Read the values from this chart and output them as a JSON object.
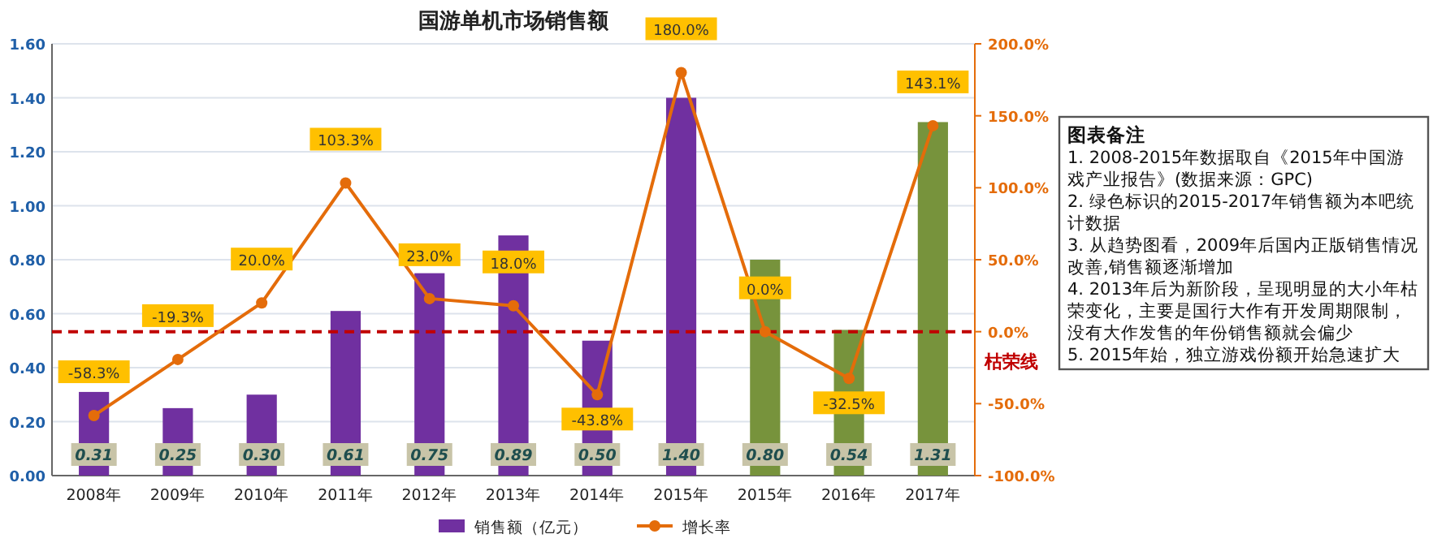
{
  "chart_data": {
    "type": "bar",
    "title": "国游单机市场销售额",
    "categories": [
      "2008年",
      "2009年",
      "2010年",
      "2011年",
      "2012年",
      "2013年",
      "2014年",
      "2015年",
      "2015年",
      "2016年",
      "2017年"
    ],
    "series": [
      {
        "name": "销售额（亿元）",
        "color": "#7030a0",
        "colors": [
          "#7030a0",
          "#7030a0",
          "#7030a0",
          "#7030a0",
          "#7030a0",
          "#7030a0",
          "#7030a0",
          "#7030a0",
          "#77933c",
          "#77933c",
          "#77933c"
        ],
        "values": [
          0.31,
          0.25,
          0.3,
          0.61,
          0.75,
          0.89,
          0.5,
          1.4,
          0.8,
          0.54,
          1.31
        ],
        "value_labels": [
          "0.31",
          "0.25",
          "0.30",
          "0.61",
          "0.75",
          "0.89",
          "0.50",
          "1.40",
          "0.80",
          "0.54",
          "1.31"
        ]
      },
      {
        "name": "增长率",
        "type": "line",
        "axis": "y2",
        "color": "#e46c0a",
        "marker": "circle",
        "values": [
          -58.3,
          -19.3,
          20.0,
          103.3,
          23.0,
          18.0,
          -43.8,
          180.0,
          0.0,
          -32.5,
          143.1
        ],
        "value_labels": [
          "-58.3%",
          "-19.3%",
          "20.0%",
          "103.3%",
          "23.0%",
          "18.0%",
          "-43.8%",
          "180.0%",
          "0.0%",
          "-32.5%",
          "143.1%"
        ]
      }
    ],
    "ylim": [
      0,
      1.6
    ],
    "yticks": [
      {
        "value": 0,
        "label": "0.00"
      },
      {
        "value": 0.2,
        "label": "0.20"
      },
      {
        "value": 0.4,
        "label": "0.40"
      },
      {
        "value": 0.6,
        "label": "0.60"
      },
      {
        "value": 0.8,
        "label": "0.80"
      },
      {
        "value": 1.0,
        "label": "1.00"
      },
      {
        "value": 1.2,
        "label": "1.20"
      },
      {
        "value": 1.4,
        "label": "1.40"
      },
      {
        "value": 1.6,
        "label": "1.60"
      }
    ],
    "y2lim": [
      -100,
      200
    ],
    "y2ticks": [
      {
        "value": -100,
        "label": "-100.0%"
      },
      {
        "value": -50,
        "label": "-50.0%"
      },
      {
        "value": 0,
        "label": "0.0%"
      },
      {
        "value": 50,
        "label": "50.0%"
      },
      {
        "value": 100,
        "label": "100.0%"
      },
      {
        "value": 150,
        "label": "150.0%"
      },
      {
        "value": 200,
        "label": "200.0%"
      }
    ],
    "ref_lines": [
      {
        "axis": "y2",
        "value": 0,
        "label": "枯荣线",
        "color": "#c00000",
        "line_style": "dashed"
      }
    ],
    "grid": "y",
    "legend": "bottom",
    "annotations": [
      "图表备注",
      "1. 2008-2015年数据取自《2015年中国游戏产业报告》(数据来源：GPC)",
      "2. 绿色标识的2015-2017年销售额为本吧统计数据",
      "3. 从趋势图看，2009年后国内正版销售情况改善,销售额逐渐增加",
      "4. 2013年后为新阶段，呈现明显的大小年枯荣变化，主要是国行大作有开发周期限制，没有大作发售的年份销售额就会偏少",
      "5. 2015年始，独立游戏份额开始急速扩大"
    ]
  }
}
